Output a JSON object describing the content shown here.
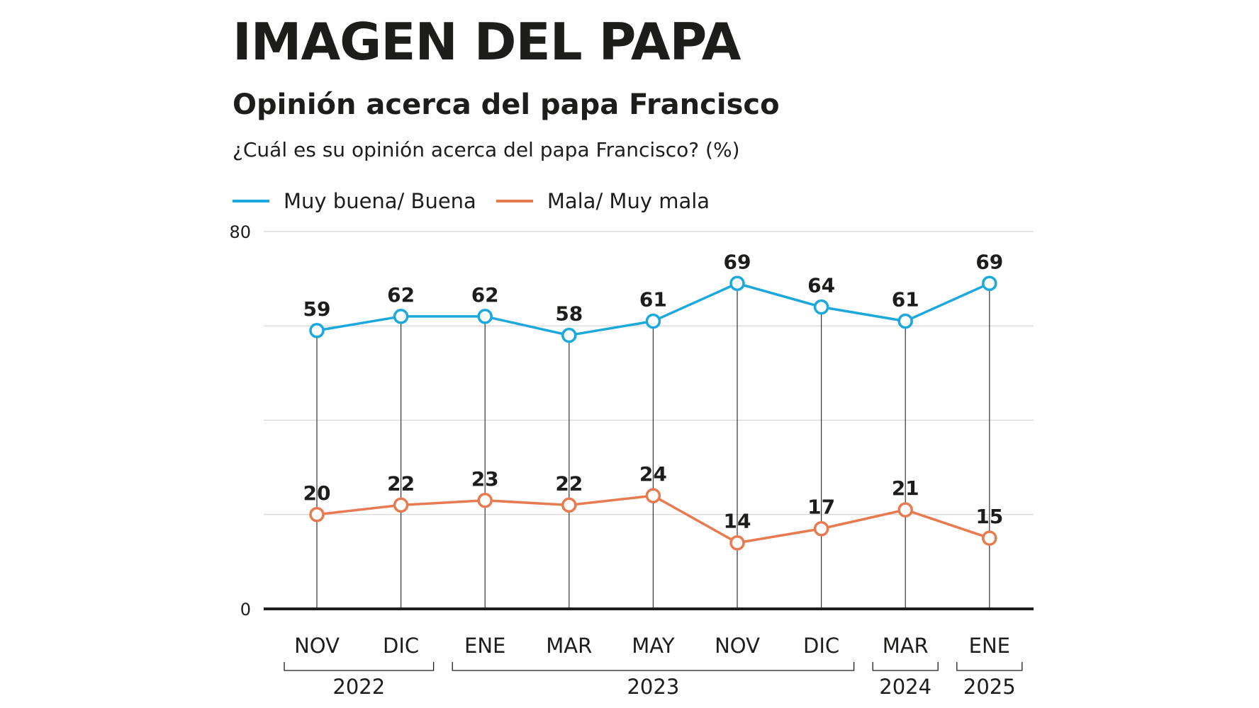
{
  "title": "IMAGEN DEL PAPA",
  "subtitle": "Opinión acerca del papa Francisco",
  "question": "¿Cuál es su opinión acerca del papa Francisco? (%)",
  "colors": {
    "buena": "#1ba8dd",
    "mala": "#e87a50",
    "axis": "#1d1d1b",
    "grid": "#d6d6d6"
  },
  "chart_data": {
    "type": "line",
    "categories": [
      "NOV",
      "DIC",
      "ENE",
      "MAR",
      "MAY",
      "NOV",
      "DIC",
      "MAR",
      "ENE"
    ],
    "year_groups": [
      {
        "label": "2022",
        "from": 0,
        "to": 1
      },
      {
        "label": "2023",
        "from": 2,
        "to": 6
      },
      {
        "label": "2024",
        "from": 7,
        "to": 7
      },
      {
        "label": "2025",
        "from": 8,
        "to": 8
      }
    ],
    "series": [
      {
        "name": "Muy buena/ Buena",
        "color": "#1ba8dd",
        "values": [
          59,
          62,
          62,
          58,
          61,
          69,
          64,
          61,
          69
        ]
      },
      {
        "name": "Mala/ Muy mala",
        "color": "#e87a50",
        "values": [
          20,
          22,
          23,
          22,
          24,
          14,
          17,
          21,
          15
        ]
      }
    ],
    "ylim": [
      0,
      80
    ],
    "yticks_labeled": [
      0,
      80
    ],
    "grid": true,
    "legend_position": "top-left"
  }
}
